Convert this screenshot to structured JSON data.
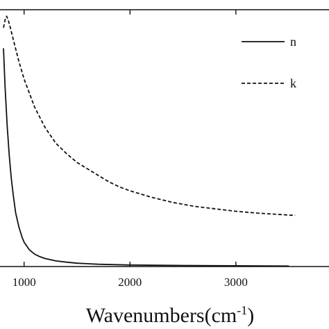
{
  "chart_data": {
    "type": "line",
    "title": "",
    "xlabel": "Wavenumbers(cm",
    "xlabel_superscript": "-1",
    "xlabel_close": ")",
    "ylabel": "",
    "xlim": [
      720,
      3840
    ],
    "ylim": [
      0,
      1
    ],
    "x_ticks": [
      1000,
      2000,
      3000
    ],
    "x_tick_labels": [
      "1000",
      "2000",
      "3000"
    ],
    "grid": false,
    "legend_position": "top-right",
    "series": [
      {
        "name": "n",
        "line_style": "solid",
        "color": "#111111",
        "x": [
          805,
          820,
          840,
          860,
          880,
          900,
          920,
          950,
          980,
          1000,
          1050,
          1100,
          1150,
          1200,
          1300,
          1400,
          1500,
          1700,
          2000,
          2500,
          3000,
          3500
        ],
        "y": [
          0.85,
          0.7,
          0.55,
          0.43,
          0.34,
          0.27,
          0.21,
          0.155,
          0.115,
          0.095,
          0.065,
          0.048,
          0.038,
          0.031,
          0.022,
          0.017,
          0.013,
          0.009,
          0.006,
          0.004,
          0.003,
          0.002
        ]
      },
      {
        "name": "k",
        "line_style": "dashed",
        "color": "#111111",
        "x": [
          805,
          820,
          835,
          850,
          870,
          900,
          950,
          1000,
          1100,
          1200,
          1300,
          1400,
          1500,
          1600,
          1700,
          1800,
          1900,
          2000,
          2200,
          2400,
          2600,
          2800,
          3000,
          3200,
          3400,
          3560
        ],
        "y": [
          0.93,
          0.96,
          0.975,
          0.96,
          0.93,
          0.88,
          0.8,
          0.73,
          0.62,
          0.54,
          0.48,
          0.44,
          0.405,
          0.38,
          0.355,
          0.33,
          0.31,
          0.295,
          0.27,
          0.25,
          0.235,
          0.225,
          0.215,
          0.208,
          0.203,
          0.199
        ]
      }
    ]
  }
}
